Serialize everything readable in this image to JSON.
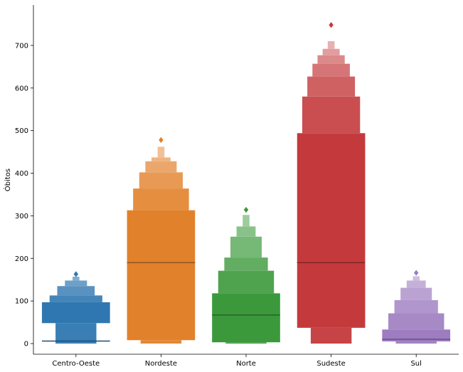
{
  "chart_data": {
    "type": "boxen",
    "title": "",
    "xlabel": "",
    "ylabel": "Óbitos",
    "ylim": [
      -25,
      795
    ],
    "yticks": [
      0,
      100,
      200,
      300,
      400,
      500,
      600,
      700
    ],
    "categories": [
      "Centro-Oeste",
      "Nordeste",
      "Norte",
      "Sudeste",
      "Sul"
    ],
    "series": [
      {
        "category": "Centro-Oeste",
        "color": "#2f77b0",
        "median": 6,
        "boxes": [
          [
            0,
            48
          ],
          [
            48,
            97
          ],
          [
            97,
            113
          ],
          [
            113,
            135
          ],
          [
            135,
            148
          ],
          [
            148,
            157
          ]
        ],
        "outliers": [
          163
        ]
      },
      {
        "category": "Nordeste",
        "color": "#e2812b",
        "median": 190,
        "boxes": [
          [
            0,
            8
          ],
          [
            8,
            313
          ],
          [
            313,
            364
          ],
          [
            364,
            402
          ],
          [
            402,
            428
          ],
          [
            428,
            437
          ],
          [
            437,
            462
          ]
        ],
        "outliers": [
          478
        ]
      },
      {
        "category": "Norte",
        "color": "#3b993b",
        "median": 67,
        "boxes": [
          [
            0,
            3
          ],
          [
            3,
            118
          ],
          [
            118,
            171
          ],
          [
            171,
            202
          ],
          [
            202,
            251
          ],
          [
            251,
            275
          ],
          [
            275,
            302
          ]
        ],
        "outliers": [
          314
        ]
      },
      {
        "category": "Sudeste",
        "color": "#c43a3c",
        "median": 190,
        "boxes": [
          [
            0,
            37
          ],
          [
            37,
            494
          ],
          [
            494,
            580
          ],
          [
            580,
            627
          ],
          [
            627,
            657
          ],
          [
            657,
            677
          ],
          [
            677,
            692
          ],
          [
            692,
            710
          ]
        ],
        "outliers": [
          748
        ]
      },
      {
        "category": "Sul",
        "color": "#9d7cc0",
        "median": 10,
        "boxes": [
          [
            0,
            5
          ],
          [
            5,
            33
          ],
          [
            33,
            71
          ],
          [
            71,
            102
          ],
          [
            102,
            131
          ],
          [
            131,
            148
          ],
          [
            148,
            158
          ]
        ],
        "outliers": [
          166
        ]
      }
    ]
  }
}
